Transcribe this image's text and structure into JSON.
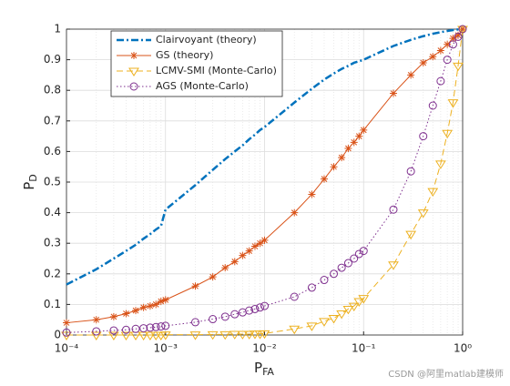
{
  "chart_data": {
    "type": "line",
    "xlabel": {
      "base": "P",
      "subscript": "FA"
    },
    "ylabel": {
      "base": "P",
      "subscript": "D"
    },
    "watermark": "CSDN @阿里matlab建模师",
    "xscale": "log",
    "grid": true,
    "minor_grid": true,
    "legend": "upper left",
    "xlim": [
      0.0001,
      1
    ],
    "ylim": [
      0,
      1
    ],
    "xticks": [
      {
        "value": 0.0001,
        "label": "10⁻⁴"
      },
      {
        "value": 0.001,
        "label": "10⁻³"
      },
      {
        "value": 0.01,
        "label": "10⁻²"
      },
      {
        "value": 0.1,
        "label": "10⁻¹"
      },
      {
        "value": 1,
        "label": "10⁰"
      }
    ],
    "yticks": [
      0,
      0.1,
      0.2,
      0.3,
      0.4,
      0.5,
      0.6,
      0.7,
      0.8,
      0.9,
      1
    ],
    "x": [
      0.0001,
      0.0002,
      0.0003,
      0.0004,
      0.0005,
      0.0006,
      0.0007,
      0.0008,
      0.0009,
      0.001,
      0.002,
      0.003,
      0.004,
      0.005,
      0.006,
      0.007,
      0.008,
      0.009,
      0.01,
      0.02,
      0.03,
      0.04,
      0.05,
      0.06,
      0.07,
      0.08,
      0.09,
      0.1,
      0.2,
      0.3,
      0.4,
      0.5,
      0.6,
      0.7,
      0.8,
      0.9,
      1
    ],
    "series": [
      {
        "name": "Clairvoyant (theory)",
        "color": "#0072BD",
        "dash": "dashdot",
        "marker": "none",
        "width": 2.5,
        "values": [
          0.165,
          0.215,
          0.25,
          0.275,
          0.295,
          0.315,
          0.33,
          0.345,
          0.356,
          0.41,
          0.49,
          0.54,
          0.575,
          0.6,
          0.62,
          0.64,
          0.655,
          0.67,
          0.68,
          0.76,
          0.805,
          0.835,
          0.855,
          0.87,
          0.88,
          0.89,
          0.895,
          0.9,
          0.945,
          0.965,
          0.977,
          0.985,
          0.99,
          0.994,
          0.997,
          0.999,
          1
        ]
      },
      {
        "name": "GS (theory)",
        "color": "#D95319",
        "dash": "solid",
        "marker": "star",
        "width": 1,
        "values": [
          0.04,
          0.05,
          0.06,
          0.07,
          0.08,
          0.09,
          0.095,
          0.1,
          0.11,
          0.115,
          0.16,
          0.19,
          0.22,
          0.24,
          0.26,
          0.275,
          0.29,
          0.3,
          0.31,
          0.4,
          0.46,
          0.51,
          0.55,
          0.58,
          0.61,
          0.63,
          0.65,
          0.67,
          0.79,
          0.85,
          0.89,
          0.91,
          0.93,
          0.95,
          0.97,
          0.98,
          1
        ]
      },
      {
        "name": "LCMV-SMI (Monte-Carlo)",
        "color": "#EDB120",
        "dash": "dashed",
        "marker": "triangle",
        "width": 1,
        "values": [
          0,
          0,
          0,
          0,
          0,
          0,
          0,
          0,
          0,
          0.001,
          0.001,
          0.002,
          0.002,
          0.003,
          0.003,
          0.003,
          0.004,
          0.004,
          0.005,
          0.02,
          0.03,
          0.045,
          0.055,
          0.07,
          0.085,
          0.095,
          0.11,
          0.12,
          0.23,
          0.33,
          0.4,
          0.47,
          0.56,
          0.66,
          0.76,
          0.88,
          1
        ]
      },
      {
        "name": "AGS (Monte-Carlo)",
        "color": "#7E2F8E",
        "dash": "dotted",
        "marker": "circle",
        "width": 1,
        "values": [
          0.008,
          0.012,
          0.015,
          0.017,
          0.02,
          0.022,
          0.024,
          0.026,
          0.028,
          0.03,
          0.042,
          0.052,
          0.06,
          0.068,
          0.074,
          0.08,
          0.085,
          0.09,
          0.095,
          0.125,
          0.155,
          0.18,
          0.2,
          0.22,
          0.235,
          0.25,
          0.265,
          0.275,
          0.41,
          0.535,
          0.65,
          0.75,
          0.83,
          0.9,
          0.95,
          0.975,
          1
        ]
      }
    ]
  }
}
